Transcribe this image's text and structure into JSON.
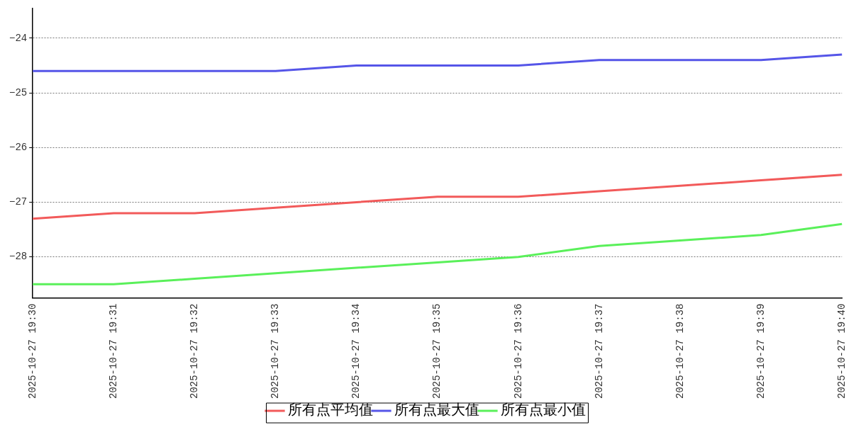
{
  "chart_data": {
    "type": "line",
    "categories": [
      "2025-10-27 19:30",
      "2025-10-27 19:31",
      "2025-10-27 19:32",
      "2025-10-27 19:33",
      "2025-10-27 19:34",
      "2025-10-27 19:35",
      "2025-10-27 19:36",
      "2025-10-27 19:37",
      "2025-10-27 19:38",
      "2025-10-27 19:39",
      "2025-10-27 19:40"
    ],
    "series": [
      {
        "name": "所有点平均值",
        "color": "#f25a5a",
        "values": [
          -27.3,
          -27.2,
          -27.2,
          -27.1,
          -27.0,
          -26.9,
          -26.9,
          -26.8,
          -26.7,
          -26.6,
          -26.5
        ]
      },
      {
        "name": "所有点最大值",
        "color": "#5555e8",
        "values": [
          -24.6,
          -24.6,
          -24.6,
          -24.6,
          -24.5,
          -24.5,
          -24.5,
          -24.4,
          -24.4,
          -24.4,
          -24.3
        ]
      },
      {
        "name": "所有点最小值",
        "color": "#5af05a",
        "values": [
          -28.5,
          -28.5,
          -28.4,
          -28.3,
          -28.2,
          -28.1,
          -28.0,
          -27.8,
          -27.7,
          -27.6,
          -27.4
        ]
      }
    ],
    "ylim": [
      -28.75,
      -23.45
    ],
    "yticks": [
      {
        "value": -28,
        "label": "−28"
      },
      {
        "value": -27,
        "label": "−27"
      },
      {
        "value": -26,
        "label": "−26"
      },
      {
        "value": -25,
        "label": "−25"
      },
      {
        "value": -24,
        "label": "−24"
      }
    ],
    "grid": "y",
    "legend": "bottom",
    "marker": "none",
    "line_style": "solid"
  }
}
